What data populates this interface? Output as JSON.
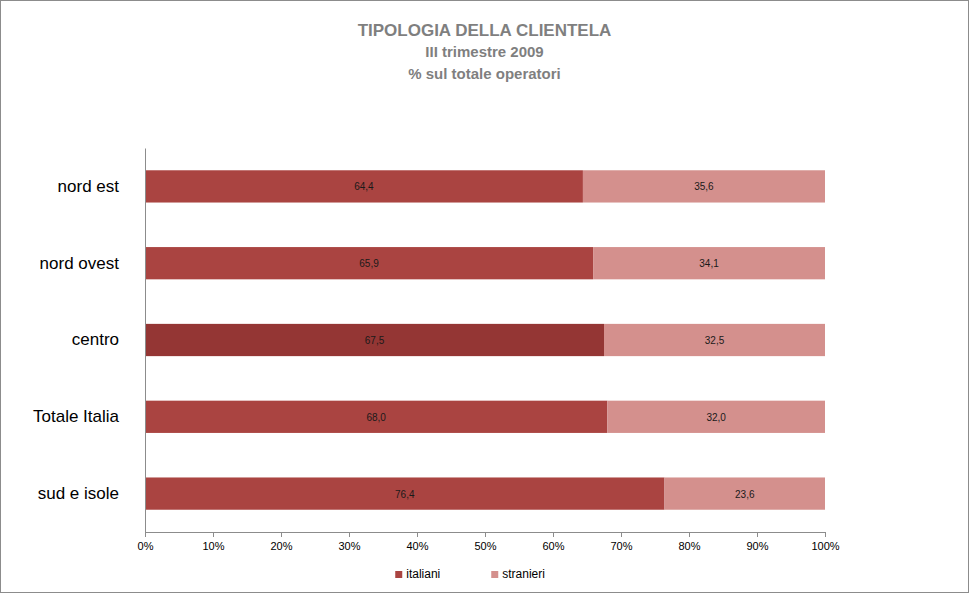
{
  "chart_data": {
    "type": "bar",
    "orientation": "horizontal",
    "stacked": true,
    "data_labels": true,
    "legend": "bottom",
    "title": "TIPOLOGIA DELLA CLIENTELA",
    "subtitle": [
      "III trimestre 2009",
      "% sul totale operatori"
    ],
    "categories": [
      "nord est",
      "nord ovest",
      "centro",
      "Totale Italia",
      "sud e isole"
    ],
    "series": [
      {
        "name": "italiani",
        "color": "#aa4441",
        "colors": [
          "#aa4441",
          "#aa4441",
          "#943634",
          "#aa4441",
          "#aa4441"
        ],
        "values": [
          64.4,
          65.9,
          67.5,
          68.0,
          76.4
        ],
        "value_labels": [
          "64,4",
          "65,9",
          "67,5",
          "68,0",
          "76,4"
        ]
      },
      {
        "name": "stranieri",
        "color": "#d4908d",
        "values": [
          35.6,
          34.1,
          32.5,
          32.0,
          23.6
        ],
        "value_labels": [
          "35,6",
          "34,1",
          "32,5",
          "32,0",
          "23,6"
        ]
      }
    ],
    "xlim": [
      0,
      100
    ],
    "xticks": [
      {
        "value": 0,
        "label": "0%"
      },
      {
        "value": 10,
        "label": "10%"
      },
      {
        "value": 20,
        "label": "20%"
      },
      {
        "value": 30,
        "label": "30%"
      },
      {
        "value": 40,
        "label": "40%"
      },
      {
        "value": 50,
        "label": "50%"
      },
      {
        "value": 60,
        "label": "60%"
      },
      {
        "value": 70,
        "label": "70%"
      },
      {
        "value": 80,
        "label": "80%"
      },
      {
        "value": 90,
        "label": "90%"
      },
      {
        "value": 100,
        "label": "100%"
      }
    ]
  }
}
